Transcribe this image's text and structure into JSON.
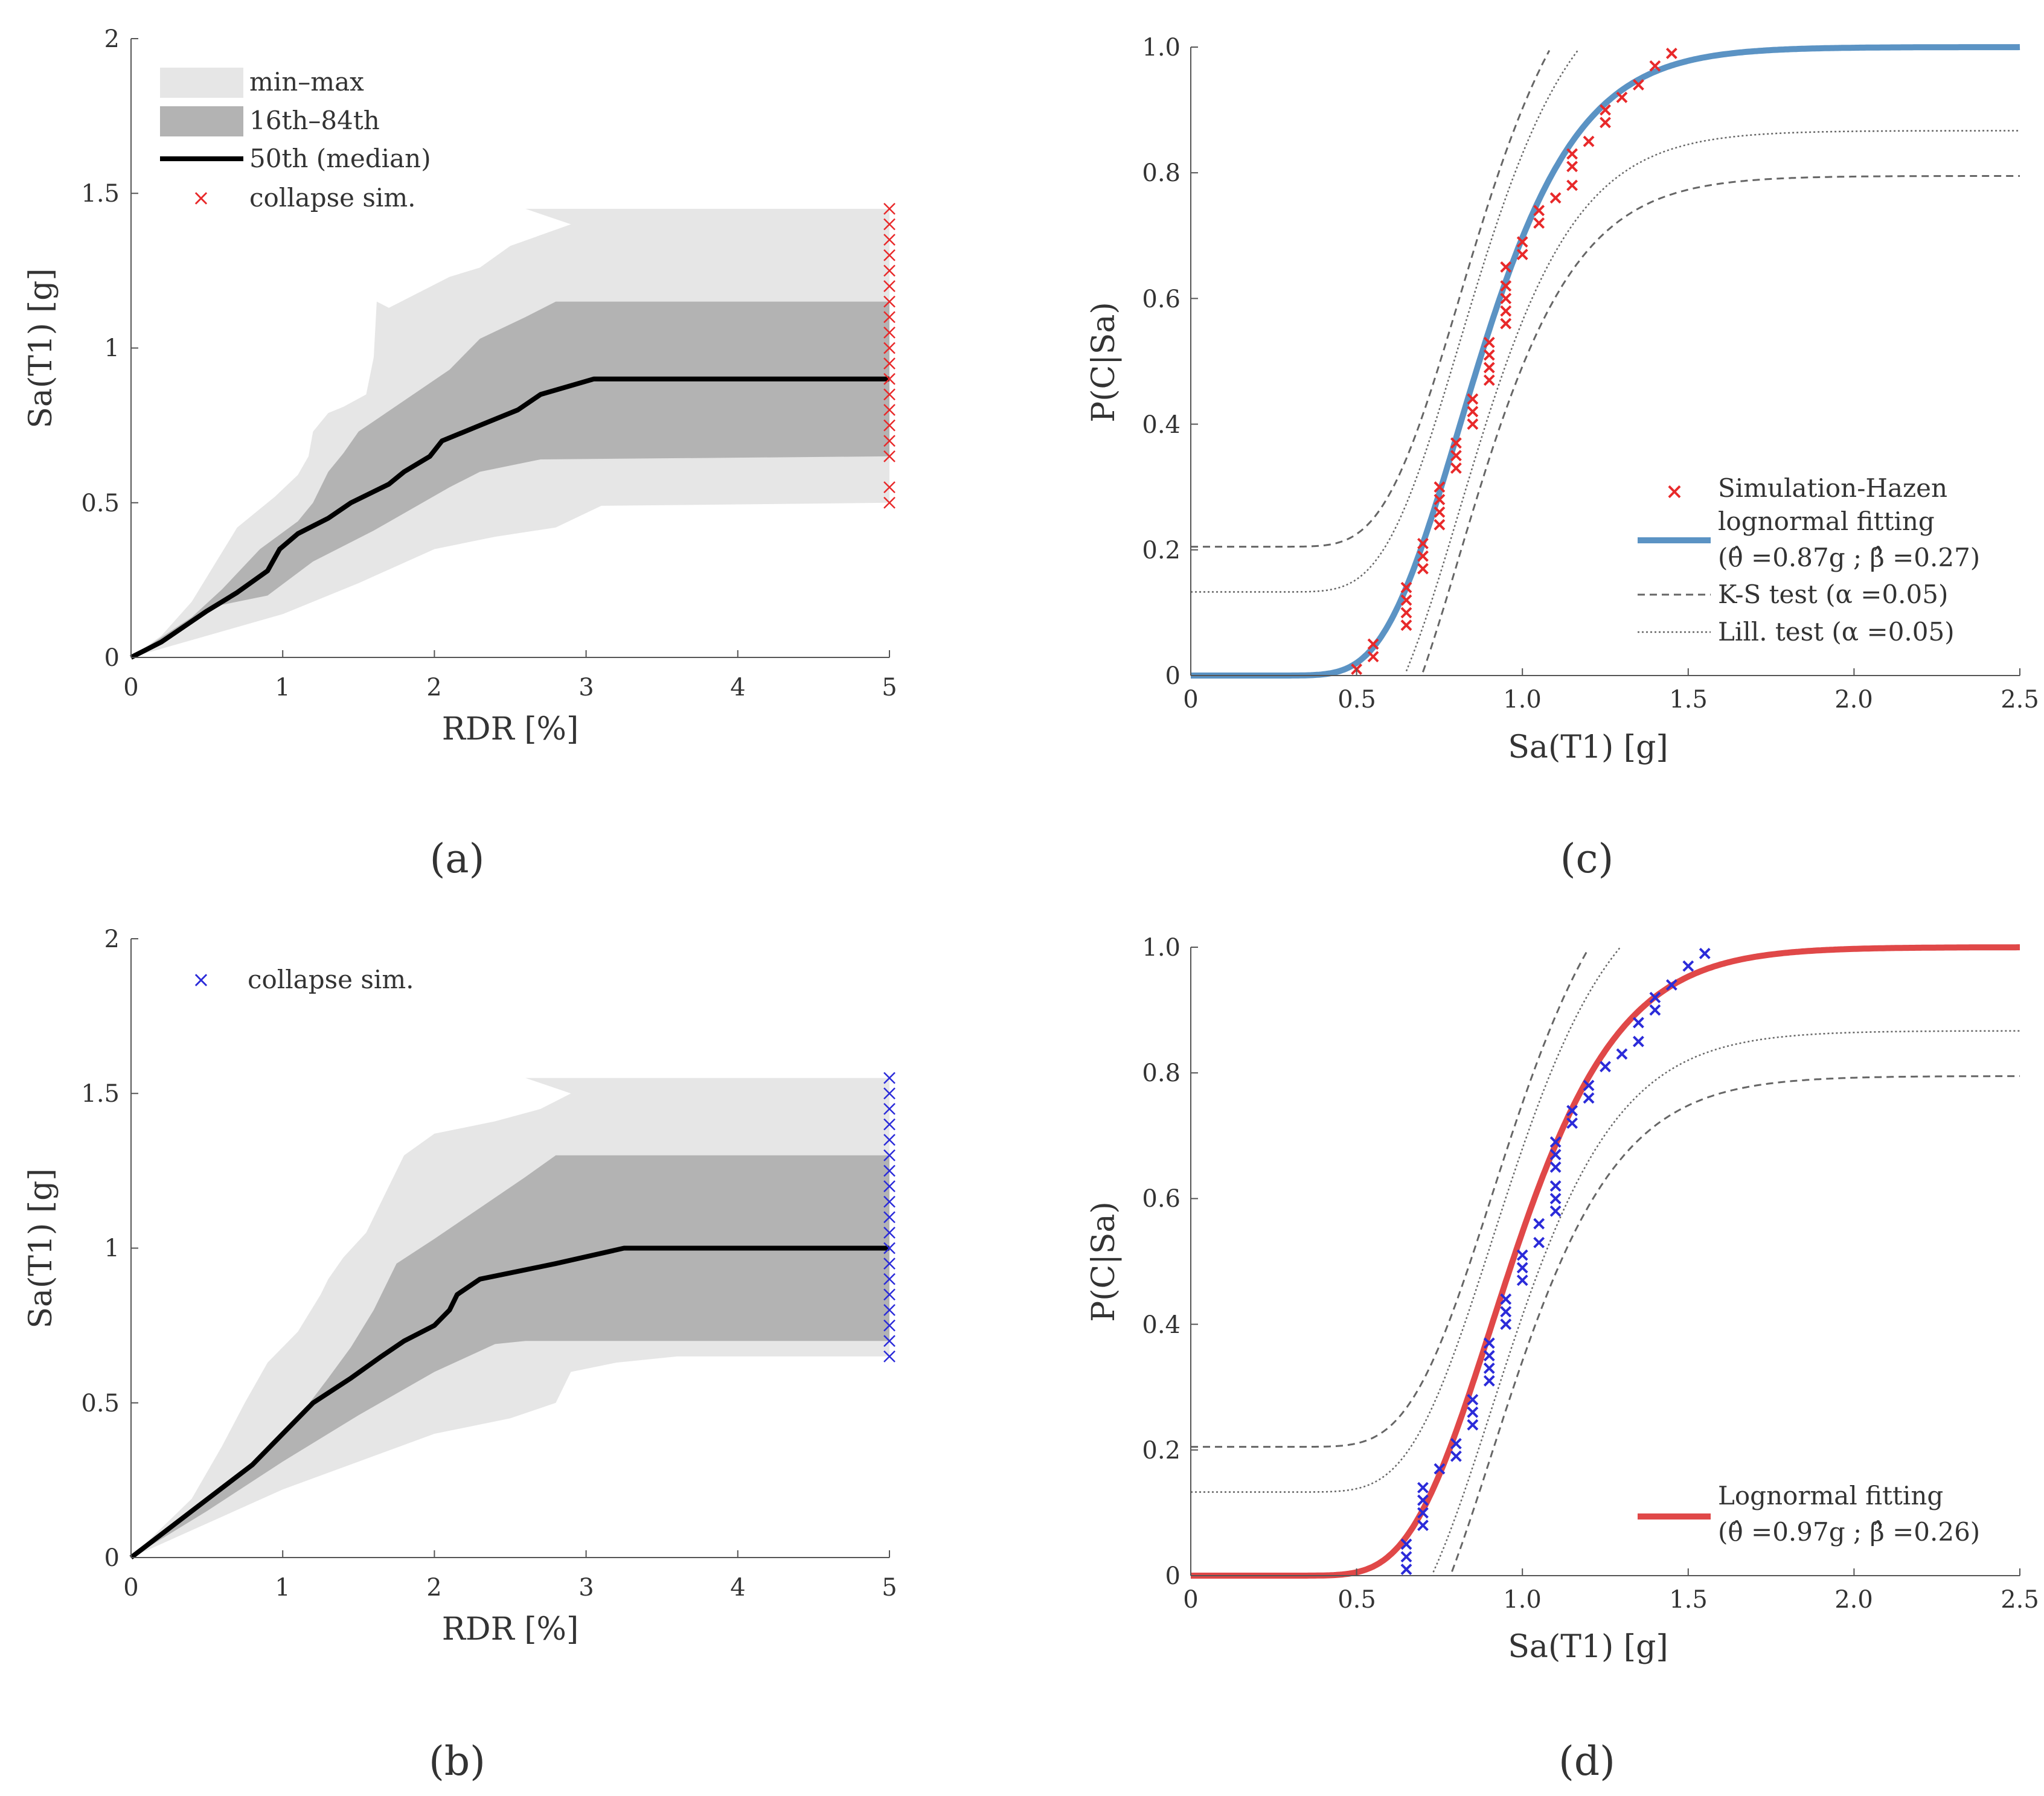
{
  "chart_data": [
    {
      "id": "a",
      "type": "area",
      "caption": "(a)",
      "xlabel": "RDR [%]",
      "ylabel": "Sa(T1) [g]",
      "xlim": [
        0,
        5
      ],
      "ylim": [
        0,
        2
      ],
      "xticks": [
        "0",
        "1",
        "2",
        "3",
        "4",
        "5"
      ],
      "yticks": [
        "0",
        "0.5",
        "1",
        "1.5",
        "2"
      ],
      "legend_position": "top-left",
      "legend": {
        "minmax": "min–max",
        "band": "16th–84th",
        "median": "50th (median)",
        "collapse": "collapse sim."
      },
      "colors": {
        "minmax": "#e6e6e6",
        "band": "#b3b3b3",
        "median": "#000000",
        "collapse": "#e8292a"
      },
      "minmax_upper": [
        [
          0,
          0
        ],
        [
          0.2,
          0.07
        ],
        [
          0.4,
          0.18
        ],
        [
          0.6,
          0.34
        ],
        [
          0.7,
          0.42
        ],
        [
          0.95,
          0.52
        ],
        [
          1.1,
          0.59
        ],
        [
          1.17,
          0.65
        ],
        [
          1.2,
          0.73
        ],
        [
          1.3,
          0.79
        ],
        [
          1.4,
          0.81
        ],
        [
          1.55,
          0.85
        ],
        [
          1.6,
          0.97
        ],
        [
          1.62,
          1.15
        ],
        [
          1.7,
          1.13
        ],
        [
          1.9,
          1.18
        ],
        [
          2.1,
          1.23
        ],
        [
          2.3,
          1.26
        ],
        [
          2.5,
          1.33
        ],
        [
          2.9,
          1.4
        ],
        [
          2.6,
          1.45
        ],
        [
          5,
          1.45
        ]
      ],
      "minmax_lower": [
        [
          0,
          0
        ],
        [
          0.5,
          0.07
        ],
        [
          1,
          0.14
        ],
        [
          1.5,
          0.24
        ],
        [
          2,
          0.35
        ],
        [
          2.4,
          0.39
        ],
        [
          2.8,
          0.42
        ],
        [
          3.1,
          0.49
        ],
        [
          5,
          0.5
        ]
      ],
      "band_upper": [
        [
          0,
          0
        ],
        [
          0.4,
          0.13
        ],
        [
          0.6,
          0.22
        ],
        [
          0.85,
          0.35
        ],
        [
          1.1,
          0.44
        ],
        [
          1.2,
          0.5
        ],
        [
          1.3,
          0.6
        ],
        [
          1.4,
          0.66
        ],
        [
          1.5,
          0.73
        ],
        [
          1.8,
          0.83
        ],
        [
          2.1,
          0.93
        ],
        [
          2.3,
          1.03
        ],
        [
          2.6,
          1.1
        ],
        [
          2.8,
          1.15
        ],
        [
          5,
          1.15
        ]
      ],
      "band_lower": [
        [
          0,
          0
        ],
        [
          0.6,
          0.17
        ],
        [
          0.9,
          0.2
        ],
        [
          1.2,
          0.31
        ],
        [
          1.6,
          0.41
        ],
        [
          2.1,
          0.55
        ],
        [
          2.3,
          0.6
        ],
        [
          2.7,
          0.64
        ],
        [
          5,
          0.65
        ]
      ],
      "median": [
        [
          0,
          0
        ],
        [
          0.2,
          0.05
        ],
        [
          0.5,
          0.15
        ],
        [
          0.7,
          0.21
        ],
        [
          0.9,
          0.28
        ],
        [
          0.98,
          0.35
        ],
        [
          1.1,
          0.4
        ],
        [
          1.3,
          0.45
        ],
        [
          1.45,
          0.5
        ],
        [
          1.7,
          0.56
        ],
        [
          1.8,
          0.6
        ],
        [
          1.97,
          0.65
        ],
        [
          2.05,
          0.7
        ],
        [
          2.3,
          0.75
        ],
        [
          2.55,
          0.8
        ],
        [
          2.7,
          0.85
        ],
        [
          3.05,
          0.9
        ],
        [
          5,
          0.9
        ]
      ],
      "collapse_x": 5,
      "collapse_y": [
        0.5,
        0.55,
        0.65,
        0.7,
        0.75,
        0.8,
        0.85,
        0.9,
        0.95,
        1.0,
        1.05,
        1.1,
        1.15,
        1.2,
        1.25,
        1.3,
        1.35,
        1.4,
        1.45
      ]
    },
    {
      "id": "b",
      "type": "area",
      "caption": "(b)",
      "xlabel": "RDR [%]",
      "ylabel": "Sa(T1) [g]",
      "xlim": [
        0,
        5
      ],
      "ylim": [
        0,
        2
      ],
      "xticks": [
        "0",
        "1",
        "2",
        "3",
        "4",
        "5"
      ],
      "yticks": [
        "0",
        "0.5",
        "1",
        "1.5",
        "2"
      ],
      "legend_position": "top-left",
      "legend": {
        "collapse": "collapse sim."
      },
      "colors": {
        "minmax": "#e6e6e6",
        "band": "#b3b3b3",
        "median": "#000000",
        "collapse": "#2b2bd9"
      },
      "minmax_upper": [
        [
          0,
          0
        ],
        [
          0.4,
          0.19
        ],
        [
          0.6,
          0.36
        ],
        [
          0.75,
          0.5
        ],
        [
          0.9,
          0.63
        ],
        [
          1.1,
          0.73
        ],
        [
          1.25,
          0.85
        ],
        [
          1.3,
          0.9
        ],
        [
          1.4,
          0.97
        ],
        [
          1.55,
          1.05
        ],
        [
          1.7,
          1.2
        ],
        [
          1.8,
          1.3
        ],
        [
          2,
          1.37
        ],
        [
          2.4,
          1.41
        ],
        [
          2.7,
          1.45
        ],
        [
          2.9,
          1.5
        ],
        [
          2.6,
          1.55
        ],
        [
          5,
          1.55
        ]
      ],
      "minmax_lower": [
        [
          0,
          0
        ],
        [
          0.5,
          0.11
        ],
        [
          1,
          0.22
        ],
        [
          1.5,
          0.31
        ],
        [
          2,
          0.4
        ],
        [
          2.5,
          0.45
        ],
        [
          2.8,
          0.5
        ],
        [
          2.9,
          0.6
        ],
        [
          3.2,
          0.63
        ],
        [
          3.6,
          0.65
        ],
        [
          5,
          0.65
        ]
      ],
      "band_upper": [
        [
          0,
          0
        ],
        [
          0.5,
          0.19
        ],
        [
          0.8,
          0.3
        ],
        [
          1.1,
          0.45
        ],
        [
          1.3,
          0.58
        ],
        [
          1.45,
          0.68
        ],
        [
          1.6,
          0.8
        ],
        [
          1.75,
          0.95
        ],
        [
          2,
          1.03
        ],
        [
          2.3,
          1.13
        ],
        [
          2.6,
          1.23
        ],
        [
          2.8,
          1.3
        ],
        [
          5,
          1.3
        ]
      ],
      "band_lower": [
        [
          0,
          0
        ],
        [
          0.5,
          0.15
        ],
        [
          1,
          0.31
        ],
        [
          1.5,
          0.46
        ],
        [
          2,
          0.6
        ],
        [
          2.4,
          0.69
        ],
        [
          2.6,
          0.7
        ],
        [
          5,
          0.7
        ]
      ],
      "median": [
        [
          0,
          0
        ],
        [
          0.4,
          0.15
        ],
        [
          0.8,
          0.3
        ],
        [
          1.2,
          0.5
        ],
        [
          1.45,
          0.58
        ],
        [
          1.65,
          0.65
        ],
        [
          1.8,
          0.7
        ],
        [
          2,
          0.75
        ],
        [
          2.1,
          0.8
        ],
        [
          2.15,
          0.85
        ],
        [
          2.3,
          0.9
        ],
        [
          2.8,
          0.95
        ],
        [
          3.25,
          1.0
        ],
        [
          5,
          1.0
        ]
      ],
      "collapse_x": 5,
      "collapse_y": [
        0.65,
        0.7,
        0.75,
        0.8,
        0.85,
        0.9,
        0.95,
        1.0,
        1.05,
        1.1,
        1.15,
        1.2,
        1.25,
        1.3,
        1.35,
        1.4,
        1.45,
        1.5,
        1.55
      ]
    },
    {
      "id": "c",
      "type": "line",
      "caption": "(c)",
      "xlabel": "Sa(T1) [g]",
      "ylabel": "P(C|Sa)",
      "xlim": [
        0,
        2.5
      ],
      "ylim": [
        0,
        1
      ],
      "xticks": [
        "0",
        "0.5",
        "1.0",
        "1.5",
        "2.0",
        "2.5"
      ],
      "yticks": [
        "0",
        "0.2",
        "0.4",
        "0.6",
        "0.8",
        "1.0"
      ],
      "legend_position": "bottom-right",
      "legend": {
        "points": "Simulation-Hazen",
        "fit": "lognormal fitting",
        "fit_params": "(θ̂ =0.87g ; β̂ =0.27)",
        "ks": "K-S test (α =0.05)",
        "lill": "Lill. test (α =0.05)"
      },
      "theta": 0.87,
      "beta": 0.27,
      "ks_d": 0.205,
      "lill_d": 0.133,
      "colors": {
        "fit": "#5b93c4",
        "points": "#e8292a",
        "bounds": "#666666"
      },
      "points": [
        [
          0.5,
          0.01
        ],
        [
          0.55,
          0.03
        ],
        [
          0.55,
          0.05
        ],
        [
          0.65,
          0.08
        ],
        [
          0.65,
          0.1
        ],
        [
          0.65,
          0.12
        ],
        [
          0.65,
          0.14
        ],
        [
          0.7,
          0.17
        ],
        [
          0.7,
          0.19
        ],
        [
          0.7,
          0.21
        ],
        [
          0.75,
          0.24
        ],
        [
          0.75,
          0.26
        ],
        [
          0.75,
          0.28
        ],
        [
          0.75,
          0.3
        ],
        [
          0.8,
          0.33
        ],
        [
          0.8,
          0.35
        ],
        [
          0.8,
          0.37
        ],
        [
          0.85,
          0.4
        ],
        [
          0.85,
          0.42
        ],
        [
          0.85,
          0.44
        ],
        [
          0.9,
          0.47
        ],
        [
          0.9,
          0.49
        ],
        [
          0.9,
          0.51
        ],
        [
          0.9,
          0.53
        ],
        [
          0.95,
          0.56
        ],
        [
          0.95,
          0.58
        ],
        [
          0.95,
          0.6
        ],
        [
          0.95,
          0.62
        ],
        [
          0.95,
          0.65
        ],
        [
          1.0,
          0.67
        ],
        [
          1.0,
          0.69
        ],
        [
          1.05,
          0.72
        ],
        [
          1.05,
          0.74
        ],
        [
          1.1,
          0.76
        ],
        [
          1.15,
          0.78
        ],
        [
          1.15,
          0.81
        ],
        [
          1.15,
          0.83
        ],
        [
          1.2,
          0.85
        ],
        [
          1.25,
          0.88
        ],
        [
          1.25,
          0.9
        ],
        [
          1.3,
          0.92
        ],
        [
          1.35,
          0.94
        ],
        [
          1.4,
          0.97
        ],
        [
          1.45,
          0.99
        ]
      ]
    },
    {
      "id": "d",
      "type": "line",
      "caption": "(d)",
      "xlabel": "Sa(T1) [g]",
      "ylabel": "P(C|Sa)",
      "xlim": [
        0,
        2.5
      ],
      "ylim": [
        0,
        1
      ],
      "xticks": [
        "0",
        "0.5",
        "1.0",
        "1.5",
        "2.0",
        "2.5"
      ],
      "yticks": [
        "0",
        "0.2",
        "0.4",
        "0.6",
        "0.8",
        "1.0"
      ],
      "legend_position": "bottom-right",
      "legend": {
        "fit": "Lognormal fitting",
        "fit_params": "(θ̂ =0.97g ; β̂ =0.26)"
      },
      "theta": 0.97,
      "beta": 0.26,
      "ks_d": 0.205,
      "lill_d": 0.133,
      "colors": {
        "fit": "#e04848",
        "points": "#2b2bd9",
        "bounds": "#666666"
      },
      "points": [
        [
          0.65,
          0.01
        ],
        [
          0.65,
          0.03
        ],
        [
          0.65,
          0.05
        ],
        [
          0.7,
          0.08
        ],
        [
          0.7,
          0.1
        ],
        [
          0.7,
          0.12
        ],
        [
          0.7,
          0.14
        ],
        [
          0.75,
          0.17
        ],
        [
          0.8,
          0.19
        ],
        [
          0.8,
          0.21
        ],
        [
          0.85,
          0.24
        ],
        [
          0.85,
          0.26
        ],
        [
          0.85,
          0.28
        ],
        [
          0.9,
          0.31
        ],
        [
          0.9,
          0.33
        ],
        [
          0.9,
          0.35
        ],
        [
          0.9,
          0.37
        ],
        [
          0.95,
          0.4
        ],
        [
          0.95,
          0.42
        ],
        [
          0.95,
          0.44
        ],
        [
          1.0,
          0.47
        ],
        [
          1.0,
          0.49
        ],
        [
          1.0,
          0.51
        ],
        [
          1.05,
          0.53
        ],
        [
          1.05,
          0.56
        ],
        [
          1.1,
          0.58
        ],
        [
          1.1,
          0.6
        ],
        [
          1.1,
          0.62
        ],
        [
          1.1,
          0.65
        ],
        [
          1.1,
          0.67
        ],
        [
          1.1,
          0.69
        ],
        [
          1.15,
          0.72
        ],
        [
          1.15,
          0.74
        ],
        [
          1.2,
          0.76
        ],
        [
          1.2,
          0.78
        ],
        [
          1.25,
          0.81
        ],
        [
          1.3,
          0.83
        ],
        [
          1.35,
          0.85
        ],
        [
          1.35,
          0.88
        ],
        [
          1.4,
          0.9
        ],
        [
          1.4,
          0.92
        ],
        [
          1.45,
          0.94
        ],
        [
          1.5,
          0.97
        ],
        [
          1.55,
          0.99
        ]
      ]
    }
  ]
}
